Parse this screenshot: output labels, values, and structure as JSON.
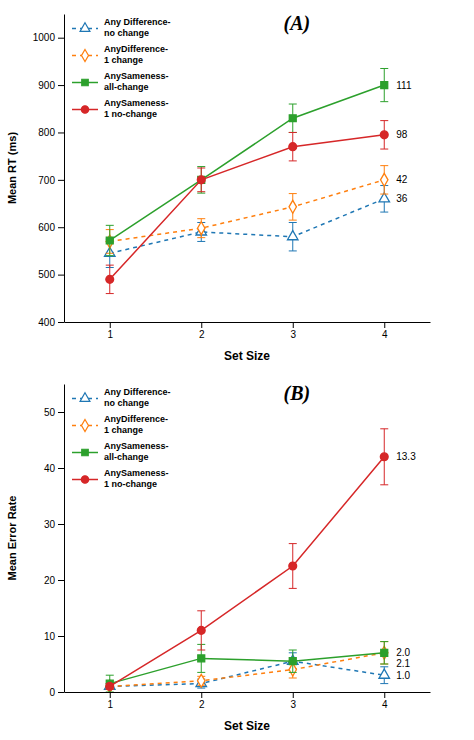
{
  "chart_data": [
    {
      "type": "line",
      "title": "(A)",
      "xlabel": "Set Size",
      "ylabel": "Mean RT (ms)",
      "x": [
        1,
        2,
        3,
        4
      ],
      "xlim": [
        0.5,
        4.5
      ],
      "xticks": [
        1,
        2,
        3,
        4
      ],
      "ylim": [
        400,
        1050
      ],
      "yticks": [
        400,
        500,
        600,
        700,
        800,
        900,
        1000
      ],
      "legend": "upper left",
      "series": [
        {
          "name": "Any Difference-\nno change",
          "values": [
            545,
            590,
            580,
            660
          ],
          "errors": [
            30,
            20,
            30,
            28
          ],
          "marker": "triangle-open",
          "line_style": "dotted",
          "end_label": "36"
        },
        {
          "name": "AnyDifference-\n1 change",
          "values": [
            570,
            598,
            643,
            700
          ],
          "errors": [
            25,
            20,
            28,
            30
          ],
          "marker": "diamond-open",
          "line_style": "dotted",
          "end_label": "42"
        },
        {
          "name": "AnySameness-\nall-change",
          "values": [
            572,
            700,
            830,
            900
          ],
          "errors": [
            32,
            28,
            30,
            35
          ],
          "marker": "square",
          "line_style": "solid",
          "end_label": "111"
        },
        {
          "name": "AnySameness-\n1 no-change",
          "values": [
            490,
            700,
            770,
            795
          ],
          "errors": [
            30,
            25,
            30,
            30
          ],
          "marker": "circle",
          "line_style": "solid",
          "end_label": "98"
        }
      ]
    },
    {
      "type": "line",
      "title": "(B)",
      "xlabel": "Set Size",
      "ylabel": "Mean Error Rate",
      "x": [
        1,
        2,
        3,
        4
      ],
      "xlim": [
        0.5,
        4.5
      ],
      "xticks": [
        1,
        2,
        3,
        4
      ],
      "ylim": [
        0,
        55
      ],
      "yticks": [
        0,
        10,
        20,
        30,
        40,
        50
      ],
      "legend": "upper left",
      "series": [
        {
          "name": "Any Difference-\nno change",
          "values": [
            1.0,
            1.5,
            5.5,
            3.0
          ],
          "errors": [
            0.5,
            0.8,
            1.5,
            1.5
          ],
          "marker": "triangle-open",
          "line_style": "dotted",
          "end_label": "1.0"
        },
        {
          "name": "AnyDifference-\n1 change",
          "values": [
            1.0,
            2.0,
            4.0,
            7.0
          ],
          "errors": [
            0.5,
            0.8,
            1.5,
            2.0
          ],
          "marker": "diamond-open",
          "line_style": "dotted",
          "end_label": "2.0"
        },
        {
          "name": "AnySameness-\nall-change",
          "values": [
            1.5,
            6.0,
            5.5,
            7.0
          ],
          "errors": [
            1.5,
            2.5,
            2.0,
            2.0
          ],
          "marker": "square",
          "line_style": "solid",
          "end_label": "2.1"
        },
        {
          "name": "AnySameness-\n1 no-change",
          "values": [
            1.0,
            11.0,
            22.5,
            42.0
          ],
          "errors": [
            0.5,
            3.5,
            4.0,
            5.0
          ],
          "marker": "circle",
          "line_style": "solid",
          "end_label": "13.3"
        }
      ]
    }
  ]
}
